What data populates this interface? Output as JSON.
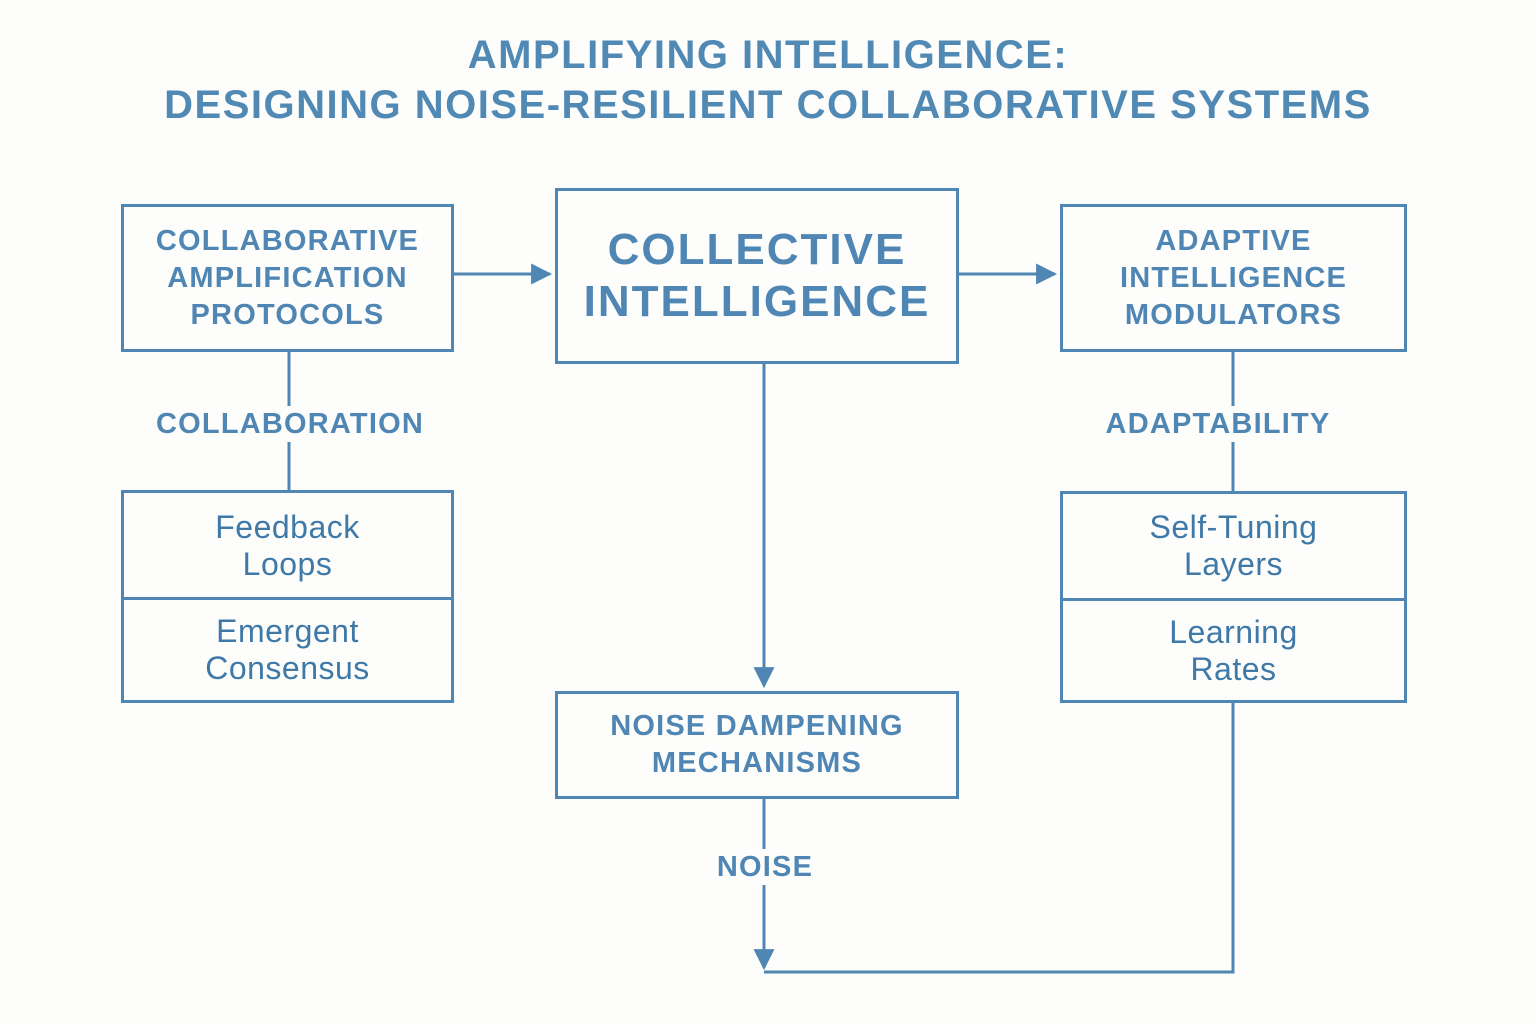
{
  "title": {
    "line1": "AMPLIFYING INTELLIGENCE:",
    "line2": "DESIGNING NOISE-RESILIENT COLLABORATIVE SYSTEMS"
  },
  "nodes": {
    "collaborative_amplification": "COLLABORATIVE\nAMPLIFICATION\nPROTOCOLS",
    "collective_intelligence": "COLLECTIVE\nINTELLIGENCE",
    "adaptive_modulators": "ADAPTIVE\nINTELLIGENCE\nMODULATORS",
    "noise_dampening": "NOISE DAMPENING\nMECHANISMS"
  },
  "left_stack": [
    "Feedback\nLoops",
    "Emergent\nConsensus"
  ],
  "right_stack": [
    "Self-Tuning\nLayers",
    "Learning\nRates"
  ],
  "connector_labels": {
    "left": "COLLABORATION",
    "right": "ADAPTABILITY",
    "bottom": "NOISE"
  },
  "colors": {
    "line": "#4f86b3",
    "text": "#4f86b3",
    "background": "#fdfdfb"
  }
}
